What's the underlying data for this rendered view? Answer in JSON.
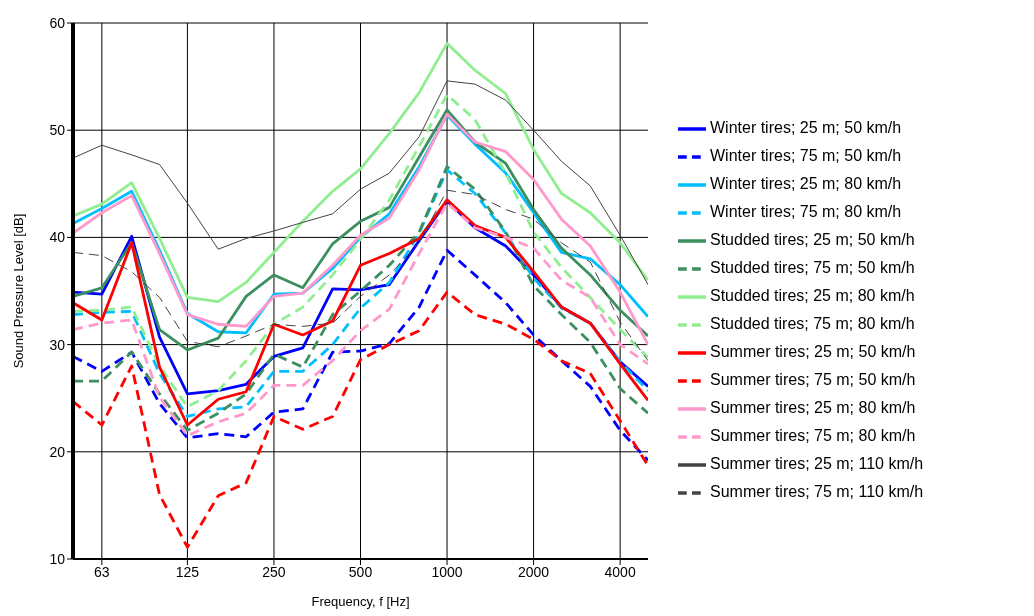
{
  "chart_data": {
    "type": "line",
    "xlabel": "Frequency, f [Hz]",
    "ylabel": "Sound Pressure Level [dB]",
    "x": [
      50,
      63,
      80,
      100,
      125,
      160,
      200,
      250,
      315,
      400,
      500,
      630,
      800,
      1000,
      1250,
      1600,
      2000,
      2500,
      3150,
      4000,
      5000
    ],
    "log": "x",
    "xlim": [
      50,
      5000
    ],
    "xticks": [
      63,
      125,
      250,
      500,
      1000,
      2000,
      4000
    ],
    "ylim": [
      10,
      60
    ],
    "yticks": [
      10,
      20,
      30,
      40,
      50,
      60
    ],
    "grid": true,
    "legend": "right",
    "marker": "none",
    "series": [
      {
        "name": "Winter tires; 25 m; 50 km/h",
        "color": "#0000ff",
        "line_style": "solid",
        "values": [
          34.9,
          34.7,
          40.1,
          30.7,
          25.4,
          25.7,
          26.3,
          28.9,
          29.7,
          35.2,
          35.1,
          35.6,
          39.7,
          43.4,
          40.9,
          39.2,
          36.5,
          33.5,
          32.0,
          28.4,
          26.1
        ]
      },
      {
        "name": "Winter tires; 75 m; 50 km/h",
        "color": "#0000ff",
        "line_style": "dashed",
        "values": [
          28.9,
          27.5,
          29.3,
          24.5,
          21.3,
          21.7,
          21.4,
          23.7,
          24.0,
          29.3,
          29.4,
          30.1,
          33.5,
          38.8,
          36.5,
          33.9,
          30.9,
          28.5,
          26.1,
          22.0,
          19.2
        ]
      },
      {
        "name": "Winter tires; 25 m; 80 km/h",
        "color": "#00bfff",
        "line_style": "solid",
        "values": [
          41.3,
          42.7,
          44.3,
          38.8,
          32.9,
          31.2,
          31.1,
          34.7,
          34.8,
          37.1,
          40.0,
          42.2,
          46.6,
          51.4,
          48.7,
          46.0,
          42.3,
          38.6,
          38.0,
          35.6,
          32.6
        ]
      },
      {
        "name": "Winter tires; 75 m; 80 km/h",
        "color": "#00bfff",
        "line_style": "dashed",
        "values": [
          32.8,
          33.0,
          33.1,
          27.3,
          23.3,
          24.0,
          24.2,
          27.5,
          27.5,
          30.0,
          33.4,
          35.8,
          40.4,
          46.3,
          44.1,
          40.4,
          36.2,
          33.4,
          32.0,
          28.4,
          25.7
        ]
      },
      {
        "name": "Studded tires; 25 m; 50 km/h",
        "color": "#3c8f5f",
        "line_style": "solid",
        "values": [
          34.5,
          35.3,
          39.5,
          31.4,
          29.5,
          30.6,
          34.5,
          36.5,
          35.3,
          39.4,
          41.5,
          42.8,
          47.5,
          51.9,
          48.9,
          46.9,
          42.6,
          39.0,
          36.5,
          33.2,
          30.8
        ]
      },
      {
        "name": "Studded tires; 75 m; 50 km/h",
        "color": "#3c8f5f",
        "line_style": "dashed",
        "values": [
          26.6,
          26.6,
          29.3,
          25.4,
          22.0,
          23.6,
          25.4,
          29.1,
          27.9,
          32.8,
          35.0,
          37.4,
          40.5,
          46.6,
          44.5,
          40.5,
          35.5,
          32.8,
          30.2,
          25.9,
          23.6
        ]
      },
      {
        "name": "Studded tires; 25 m; 80 km/h",
        "color": "#90ee90",
        "line_style": "solid",
        "values": [
          42.0,
          43.1,
          45.1,
          39.9,
          34.4,
          34.0,
          35.8,
          38.6,
          41.5,
          44.3,
          46.4,
          49.7,
          53.5,
          58.1,
          55.6,
          53.4,
          48.2,
          44.1,
          42.3,
          39.5,
          36.0
        ]
      },
      {
        "name": "Studded tires; 75 m; 80 km/h",
        "color": "#90ee90",
        "line_style": "dashed",
        "values": [
          33.1,
          33.2,
          33.5,
          28.0,
          24.2,
          25.7,
          28.5,
          31.9,
          33.5,
          36.5,
          39.8,
          43.5,
          48.5,
          53.3,
          51.0,
          46.0,
          40.5,
          37.2,
          34.4,
          31.4,
          28.8
        ]
      },
      {
        "name": "Summer tires; 25 m; 50 km/h",
        "color": "#ff0000",
        "line_style": "solid",
        "values": [
          33.9,
          32.3,
          39.5,
          27.9,
          22.5,
          24.9,
          25.6,
          31.9,
          30.9,
          32.2,
          37.4,
          38.5,
          39.9,
          43.5,
          41.1,
          40.0,
          36.8,
          33.5,
          32.0,
          28.2,
          24.8
        ]
      },
      {
        "name": "Summer tires; 75 m; 50 km/h",
        "color": "#ff0000",
        "line_style": "dashed",
        "values": [
          24.7,
          22.5,
          28.0,
          16.0,
          11.1,
          15.9,
          17.1,
          23.3,
          22.1,
          23.3,
          28.6,
          30.0,
          31.3,
          34.9,
          32.8,
          31.9,
          30.5,
          28.5,
          27.3,
          22.9,
          18.7
        ]
      },
      {
        "name": "Summer tires; 25 m; 80 km/h",
        "color": "#ff99cc",
        "line_style": "solid",
        "values": [
          40.4,
          42.3,
          43.9,
          38.5,
          32.8,
          31.9,
          31.7,
          34.5,
          34.8,
          37.4,
          40.2,
          41.8,
          46.3,
          51.5,
          48.9,
          48.0,
          45.4,
          41.7,
          39.2,
          34.9,
          30.0
        ]
      },
      {
        "name": "Summer tires; 75 m; 80 km/h",
        "color": "#ff99cc",
        "line_style": "dashed",
        "values": [
          31.4,
          32.0,
          32.3,
          25.1,
          21.5,
          22.8,
          23.6,
          26.2,
          26.2,
          28.5,
          31.3,
          33.3,
          38.5,
          43.2,
          40.9,
          40.0,
          39.0,
          36.0,
          34.4,
          30.0,
          28.2
        ]
      },
      {
        "name": "Summer tires; 25 m; 110 km/h",
        "color": "#444444",
        "line_style": "solid",
        "values": [
          47.4,
          48.6,
          47.7,
          46.8,
          43.2,
          38.9,
          39.9,
          40.6,
          41.4,
          42.2,
          44.5,
          46.0,
          49.4,
          54.6,
          54.3,
          52.8,
          50.0,
          47.1,
          44.8,
          40.2,
          35.6
        ]
      },
      {
        "name": "Summer tires; 75 m; 110 km/h",
        "color": "#444444",
        "line_style": "dashed",
        "values": [
          38.6,
          38.3,
          36.8,
          34.4,
          30.3,
          29.8,
          30.8,
          31.9,
          31.7,
          32.0,
          34.5,
          36.5,
          39.5,
          44.4,
          44.0,
          42.6,
          41.7,
          39.5,
          37.7,
          32.1,
          28.5
        ]
      }
    ]
  }
}
